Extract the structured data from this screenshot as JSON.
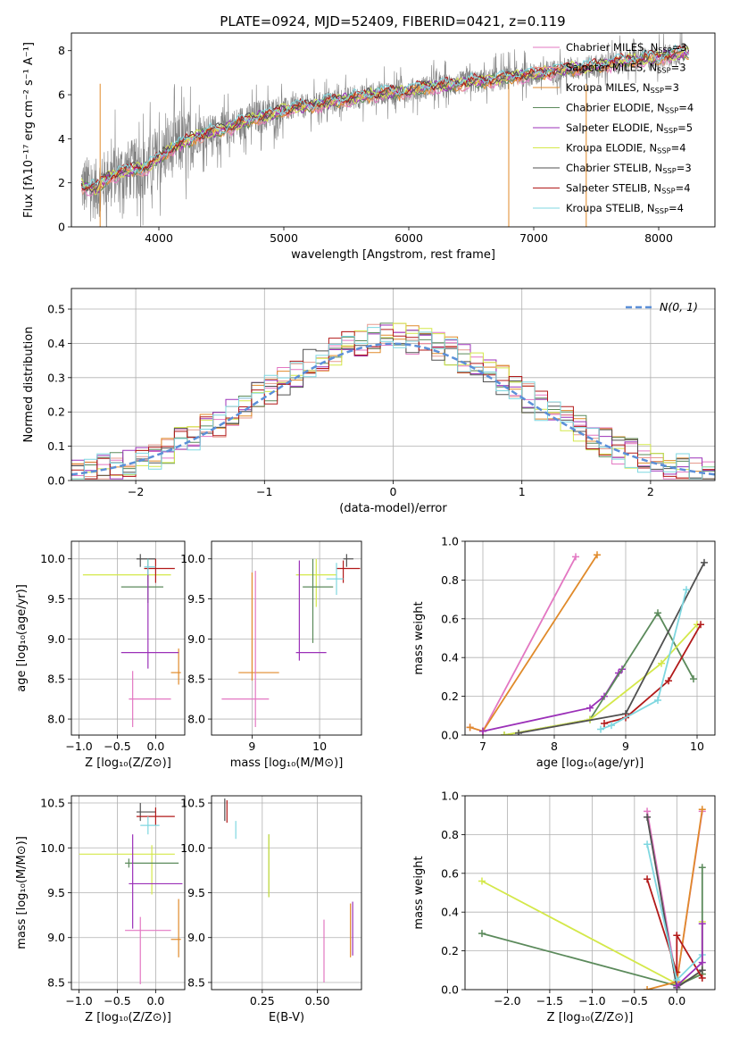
{
  "figure_title": "PLATE=0924, MJD=52409, FIBERID=0421, z=0.119",
  "chart_data": [
    {
      "id": "spectrum",
      "type": "line",
      "xlabel": "wavelength [Angstrom, rest frame]",
      "ylabel": "Flux [fλ10⁻¹⁷ erg cm⁻² s⁻¹ A⁻¹]",
      "xlim": [
        3300,
        8450
      ],
      "ylim": [
        0,
        8.8
      ],
      "xticks": [
        4000,
        5000,
        6000,
        7000,
        8000
      ],
      "yticks": [
        0,
        2,
        4,
        6,
        8
      ],
      "grid": false,
      "legend_position": "top-right",
      "data_series": {
        "name": "data",
        "color": "#808080",
        "x": [
          3380,
          3500,
          3600,
          3700,
          3800,
          3900,
          4000,
          4100,
          4200,
          4300,
          4400,
          4500,
          4600,
          4700,
          4800,
          4900,
          5000,
          5100,
          5200,
          5300,
          5400,
          5500,
          5600,
          5700,
          5800,
          5900,
          6000,
          6100,
          6200,
          6300,
          6400,
          6500,
          6600,
          6700,
          6800,
          6900,
          7000,
          7100,
          7200,
          7300,
          7400,
          7500,
          7600,
          7700,
          7800,
          7900,
          8000,
          8100,
          8200
        ],
        "y": [
          1.9,
          1.7,
          2.3,
          2.5,
          2.6,
          2.7,
          3.1,
          3.6,
          3.8,
          4.1,
          4.3,
          4.4,
          4.6,
          4.8,
          5.0,
          5.1,
          5.3,
          5.4,
          5.5,
          5.6,
          5.7,
          5.8,
          5.9,
          6.0,
          6.1,
          6.1,
          6.2,
          6.3,
          6.4,
          6.4,
          6.5,
          6.6,
          6.6,
          6.7,
          6.8,
          6.9,
          6.9,
          7.0,
          7.1,
          7.2,
          7.2,
          7.3,
          7.4,
          7.5,
          7.6,
          7.6,
          7.7,
          7.8,
          7.9
        ]
      },
      "model_series": [
        {
          "name": "Chabrier MILES, N$_{SSP}$=3",
          "color": "#e377c2"
        },
        {
          "name": "Salpeter MILES, N$_{SSP}$=3",
          "color": "#e69a8d"
        },
        {
          "name": "Kroupa MILES, N$_{SSP}$=3",
          "color": "#e08a2a"
        },
        {
          "name": "Chabrier ELODIE, N$_{SSP}$=4",
          "color": "#5b8a5b"
        },
        {
          "name": "Salpeter ELODIE, N$_{SSP}$=5",
          "color": "#9b30b8"
        },
        {
          "name": "Kroupa ELODIE, N$_{SSP}$=4",
          "color": "#d4e84a"
        },
        {
          "name": "Chabrier STELIB, N$_{SSP}$=3",
          "color": "#505050"
        },
        {
          "name": "Salpeter STELIB, N$_{SSP}$=4",
          "color": "#b21a1a"
        },
        {
          "name": "Kroupa STELIB, N$_{SSP}$=4",
          "color": "#7fd7e0"
        }
      ]
    },
    {
      "id": "residuals",
      "type": "line",
      "xlabel": "(data-model)/error",
      "ylabel": "Normed distribution",
      "xlim": [
        -2.5,
        2.5
      ],
      "ylim": [
        0,
        0.56
      ],
      "xticks": [
        -2,
        -1,
        0,
        1,
        2
      ],
      "yticks": [
        0.0,
        0.1,
        0.2,
        0.3,
        0.4,
        0.5
      ],
      "grid": true,
      "legend_position": "top-right",
      "legend": "N(0, 1)",
      "reference_curve": {
        "name": "N(0, 1)",
        "mean": 0,
        "sigma": 1,
        "color": "#5b8fd8",
        "style": "dashed"
      },
      "histogram_bin_width": 0.1,
      "histogram_envelope": [
        0.03,
        0.05,
        0.07,
        0.1,
        0.13,
        0.17,
        0.21,
        0.24,
        0.27,
        0.3,
        0.33,
        0.36,
        0.38,
        0.4,
        0.41,
        0.42,
        0.43,
        0.42,
        0.4,
        0.37,
        0.33,
        0.28,
        0.24,
        0.19,
        0.15,
        0.12,
        0.09,
        0.07,
        0.05,
        0.03
      ]
    },
    {
      "id": "age_vs_Z",
      "type": "scatter",
      "xlabel": "Z [log₁₀(Z/Z⊙)]",
      "ylabel": "age  [log₁₀(age/yr)]",
      "xlim": [
        -1.1,
        0.38
      ],
      "ylim": [
        7.8,
        10.22
      ],
      "xticks": [
        -1.0,
        -0.5,
        0.0
      ],
      "yticks": [
        8.0,
        8.5,
        9.0,
        9.5,
        10.0
      ],
      "grid": true,
      "points": [
        {
          "x": -0.1,
          "y": 9.8,
          "xerr": [
            0.85,
            0.3
          ],
          "yerr": [
            0.1,
            0.2
          ],
          "color": "#d4e84a"
        },
        {
          "x": -0.3,
          "y": 8.25,
          "xerr": [
            0.05,
            0.5
          ],
          "yerr": [
            0.35,
            0.35
          ],
          "color": "#e377c2"
        },
        {
          "x": 0.3,
          "y": 8.58,
          "xerr": [
            0.1,
            0.03
          ],
          "yerr": [
            0.15,
            0.3
          ],
          "color": "#e08a2a"
        },
        {
          "x": -0.1,
          "y": 9.65,
          "xerr": [
            0.35,
            0.2
          ],
          "yerr": [
            0.2,
            0.35
          ],
          "color": "#5b8a5b"
        },
        {
          "x": -0.1,
          "y": 8.83,
          "xerr": [
            0.35,
            0.4
          ],
          "yerr": [
            0.2,
            1.1
          ],
          "color": "#9b30b8"
        },
        {
          "x": -0.2,
          "y": 10.0,
          "xerr": [
            0.05,
            0.2
          ],
          "yerr": [
            0.1,
            0.06
          ],
          "color": "#505050"
        },
        {
          "x": 0.0,
          "y": 9.88,
          "xerr": [
            0.15,
            0.25
          ],
          "yerr": [
            0.18,
            0.12
          ],
          "color": "#b21a1a"
        },
        {
          "x": -0.1,
          "y": 9.9,
          "xerr": [
            0.05,
            0.1
          ],
          "yerr": [
            0.1,
            0.1
          ],
          "color": "#7fd7e0"
        }
      ]
    },
    {
      "id": "age_vs_mass",
      "type": "scatter",
      "xlabel": "mass [log₁₀(M/M⊙)]",
      "ylabel": "",
      "xlim": [
        8.4,
        10.62
      ],
      "ylim": [
        7.8,
        10.22
      ],
      "xticks": [
        9,
        10
      ],
      "yticks": [
        8.0,
        8.5,
        9.0,
        9.5,
        10.0
      ],
      "grid": true,
      "points": [
        {
          "x": 9.0,
          "y": 8.58,
          "xerr": [
            0.2,
            0.4
          ],
          "yerr": [
            0.1,
            1.25
          ],
          "color": "#e08a2a"
        },
        {
          "x": 9.05,
          "y": 8.25,
          "xerr": [
            0.5,
            0.2
          ],
          "yerr": [
            0.35,
            1.6
          ],
          "color": "#e377c2"
        },
        {
          "x": 9.95,
          "y": 9.8,
          "xerr": [
            0.3,
            0.3
          ],
          "yerr": [
            0.4,
            0.2
          ],
          "color": "#d4e84a"
        },
        {
          "x": 9.9,
          "y": 9.65,
          "xerr": [
            0.15,
            0.3
          ],
          "yerr": [
            0.7,
            0.35
          ],
          "color": "#5b8a5b"
        },
        {
          "x": 9.7,
          "y": 8.83,
          "xerr": [
            0.05,
            0.4
          ],
          "yerr": [
            0.1,
            1.15
          ],
          "color": "#9b30b8"
        },
        {
          "x": 10.4,
          "y": 10.0,
          "xerr": [
            0.05,
            0.1
          ],
          "yerr": [
            0.1,
            0.06
          ],
          "color": "#505050"
        },
        {
          "x": 10.35,
          "y": 9.88,
          "xerr": [
            0.1,
            0.25
          ],
          "yerr": [
            0.18,
            0.1
          ],
          "color": "#b21a1a"
        },
        {
          "x": 10.25,
          "y": 9.75,
          "xerr": [
            0.15,
            0.1
          ],
          "yerr": [
            0.2,
            0.2
          ],
          "color": "#7fd7e0"
        }
      ]
    },
    {
      "id": "weight_vs_age",
      "type": "line",
      "xlabel": "age  [log₁₀(age/yr)]",
      "ylabel": "mass weight",
      "xlim": [
        6.75,
        10.25
      ],
      "ylim": [
        0,
        1.0
      ],
      "xticks": [
        7,
        8,
        9,
        10
      ],
      "yticks": [
        0.0,
        0.2,
        0.4,
        0.6,
        0.8,
        1.0
      ],
      "grid": true,
      "series": [
        {
          "color": "#e377c2",
          "x": [
            6.82,
            7.0,
            8.3
          ],
          "y": [
            0.04,
            0.02,
            0.92
          ]
        },
        {
          "color": "#e08a2a",
          "x": [
            6.82,
            7.0,
            8.6
          ],
          "y": [
            0.04,
            0.02,
            0.93
          ]
        },
        {
          "color": "#9b30b8",
          "x": [
            7.0,
            8.5,
            8.7,
            8.9,
            8.95
          ],
          "y": [
            0.02,
            0.14,
            0.2,
            0.32,
            0.34
          ]
        },
        {
          "color": "#5b8a5b",
          "x": [
            7.3,
            8.5,
            9.45,
            9.95
          ],
          "y": [
            0.0,
            0.08,
            0.63,
            0.29
          ]
        },
        {
          "color": "#d4e84a",
          "x": [
            7.3,
            8.5,
            9.5,
            10.0
          ],
          "y": [
            0.0,
            0.08,
            0.37,
            0.57
          ]
        },
        {
          "color": "#505050",
          "x": [
            7.5,
            9.0,
            10.1
          ],
          "y": [
            0.01,
            0.11,
            0.89
          ]
        },
        {
          "color": "#b21a1a",
          "x": [
            8.7,
            9.0,
            9.6,
            10.05
          ],
          "y": [
            0.06,
            0.09,
            0.28,
            0.57
          ]
        },
        {
          "color": "#7fd7e0",
          "x": [
            8.65,
            8.8,
            9.45,
            9.85
          ],
          "y": [
            0.03,
            0.05,
            0.18,
            0.75
          ]
        }
      ]
    },
    {
      "id": "mass_vs_Z",
      "type": "scatter",
      "xlabel": "Z [log₁₀(Z/Z⊙)]",
      "ylabel": "mass [log₁₀(M/M⊙)]",
      "xlim": [
        -1.1,
        0.38
      ],
      "ylim": [
        8.42,
        10.58
      ],
      "xticks": [
        -1.0,
        -0.5,
        0.0
      ],
      "yticks": [
        8.5,
        9.0,
        9.5,
        10.0,
        10.5
      ],
      "grid": true,
      "points": [
        {
          "x": -0.05,
          "y": 9.93,
          "xerr": [
            0.95,
            0.3
          ],
          "yerr": [
            0.45,
            0.1
          ],
          "color": "#d4e84a"
        },
        {
          "x": -0.35,
          "y": 9.83,
          "xerr": [
            0.05,
            0.65
          ],
          "yerr": [
            0.05,
            0.05
          ],
          "color": "#5b8a5b"
        },
        {
          "x": -0.3,
          "y": 9.6,
          "xerr": [
            0.05,
            0.65
          ],
          "yerr": [
            0.5,
            0.55
          ],
          "color": "#9b30b8"
        },
        {
          "x": -0.2,
          "y": 9.08,
          "xerr": [
            0.2,
            0.4
          ],
          "yerr": [
            0.6,
            0.15
          ],
          "color": "#e377c2"
        },
        {
          "x": 0.3,
          "y": 8.98,
          "xerr": [
            0.1,
            0.03
          ],
          "yerr": [
            0.2,
            0.45
          ],
          "color": "#e08a2a"
        },
        {
          "x": -0.2,
          "y": 10.4,
          "xerr": [
            0.05,
            0.2
          ],
          "yerr": [
            0.1,
            0.1
          ],
          "color": "#505050"
        },
        {
          "x": 0.0,
          "y": 10.35,
          "xerr": [
            0.25,
            0.25
          ],
          "yerr": [
            0.1,
            0.1
          ],
          "color": "#b21a1a"
        },
        {
          "x": -0.1,
          "y": 10.25,
          "xerr": [
            0.1,
            0.15
          ],
          "yerr": [
            0.1,
            0.1
          ],
          "color": "#7fd7e0"
        }
      ]
    },
    {
      "id": "mass_vs_ebv",
      "type": "scatter",
      "xlabel": "E(B-V)",
      "ylabel": "",
      "xlim": [
        0.02,
        0.7
      ],
      "ylim": [
        8.42,
        10.58
      ],
      "xticks": [
        0.25,
        0.5
      ],
      "yticks": [
        8.5,
        9.0,
        9.5,
        10.0,
        10.5
      ],
      "grid": true,
      "points": [
        {
          "x": 0.08,
          "y": 10.4,
          "yerr": [
            0.1,
            0.15
          ],
          "color": "#505050"
        },
        {
          "x": 0.09,
          "y": 10.38,
          "yerr": [
            0.1,
            0.15
          ],
          "color": "#b21a1a"
        },
        {
          "x": 0.13,
          "y": 10.2,
          "yerr": [
            0.1,
            0.1
          ],
          "color": "#7fd7e0"
        },
        {
          "x": 0.28,
          "y": 9.8,
          "yerr": [
            0.35,
            0.35
          ],
          "color": "#5b8a5b"
        },
        {
          "x": 0.28,
          "y": 9.75,
          "yerr": [
            0.3,
            0.4
          ],
          "color": "#d4e84a"
        },
        {
          "x": 0.53,
          "y": 8.85,
          "yerr": [
            0.35,
            0.35
          ],
          "color": "#e377c2"
        },
        {
          "x": 0.65,
          "y": 9.08,
          "yerr": [
            0.3,
            0.3
          ],
          "color": "#e08a2a"
        },
        {
          "x": 0.66,
          "y": 9.0,
          "yerr": [
            0.2,
            0.4
          ],
          "color": "#9b30b8"
        }
      ]
    },
    {
      "id": "weight_vs_Z",
      "type": "line",
      "xlabel": "Z [log₁₀(Z/Z⊙)]",
      "ylabel": "mass weight",
      "xlim": [
        -2.5,
        0.45
      ],
      "ylim": [
        0,
        1.0
      ],
      "xticks": [
        -2.0,
        -1.5,
        -1.0,
        -0.5,
        0.0
      ],
      "yticks": [
        0.0,
        0.2,
        0.4,
        0.6,
        0.8,
        1.0
      ],
      "grid": true,
      "series": [
        {
          "color": "#d4e84a",
          "x": [
            -2.3,
            0.0,
            0.3,
            0.3
          ],
          "y": [
            0.56,
            0.03,
            0.08,
            0.35
          ]
        },
        {
          "color": "#5b8a5b",
          "x": [
            -2.3,
            0.0,
            0.3,
            0.3
          ],
          "y": [
            0.29,
            0.02,
            0.08,
            0.63
          ]
        },
        {
          "color": "#e377c2",
          "x": [
            -0.35,
            0.0,
            0.3
          ],
          "y": [
            0.92,
            0.04,
            0.92
          ]
        },
        {
          "color": "#e08a2a",
          "x": [
            -0.35,
            0.0,
            0.3
          ],
          "y": [
            0.0,
            0.04,
            0.93
          ]
        },
        {
          "color": "#505050",
          "x": [
            -0.35,
            0.0,
            0.3
          ],
          "y": [
            0.89,
            0.01,
            0.1
          ]
        },
        {
          "color": "#b21a1a",
          "x": [
            -0.35,
            0.0,
            0.0,
            0.3
          ],
          "y": [
            0.57,
            0.09,
            0.28,
            0.06
          ]
        },
        {
          "color": "#7fd7e0",
          "x": [
            -0.35,
            0.0,
            0.3
          ],
          "y": [
            0.75,
            0.05,
            0.18
          ]
        },
        {
          "color": "#9b30b8",
          "x": [
            0.0,
            0.3,
            0.3
          ],
          "y": [
            0.02,
            0.14,
            0.34
          ]
        }
      ]
    }
  ]
}
